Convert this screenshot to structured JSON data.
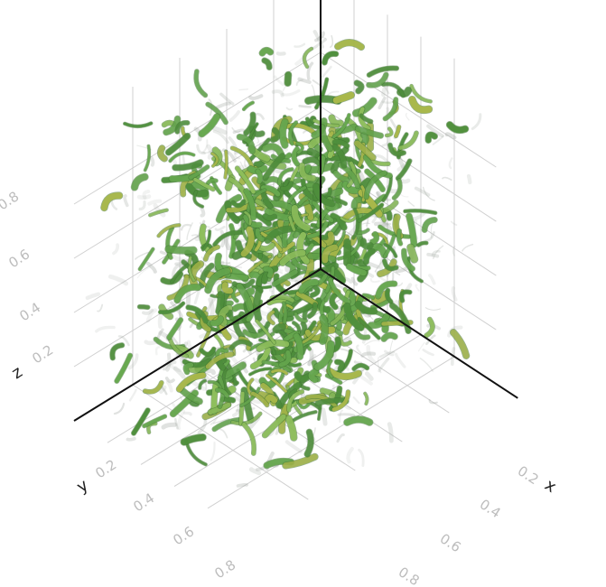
{
  "chart_data": {
    "type": "scatter",
    "subtype": "3d-isosurface-volume",
    "axes": {
      "x": {
        "label": "x",
        "ticks": [
          "0.2",
          "0.4",
          "0.6",
          "0.8"
        ],
        "range": [
          0,
          1
        ]
      },
      "y": {
        "label": "y",
        "ticks": [
          "0.2",
          "0.4",
          "0.6",
          "0.8"
        ],
        "range": [
          0,
          1
        ]
      },
      "z": {
        "label": "z",
        "ticks": [
          "0.2",
          "0.4",
          "0.6",
          "0.8"
        ],
        "range": [
          0,
          1
        ]
      }
    },
    "grid": true,
    "colors": {
      "tube_dark": "#4f8f3c",
      "tube_mid": "#67a84f",
      "tube_light": "#8fbf5c",
      "tube_yellow": "#a9b84a",
      "haze": "#9aa39a",
      "axis": "#111111",
      "grid": "#d0d0d0",
      "tick_label": "#bdbdbd"
    }
  }
}
